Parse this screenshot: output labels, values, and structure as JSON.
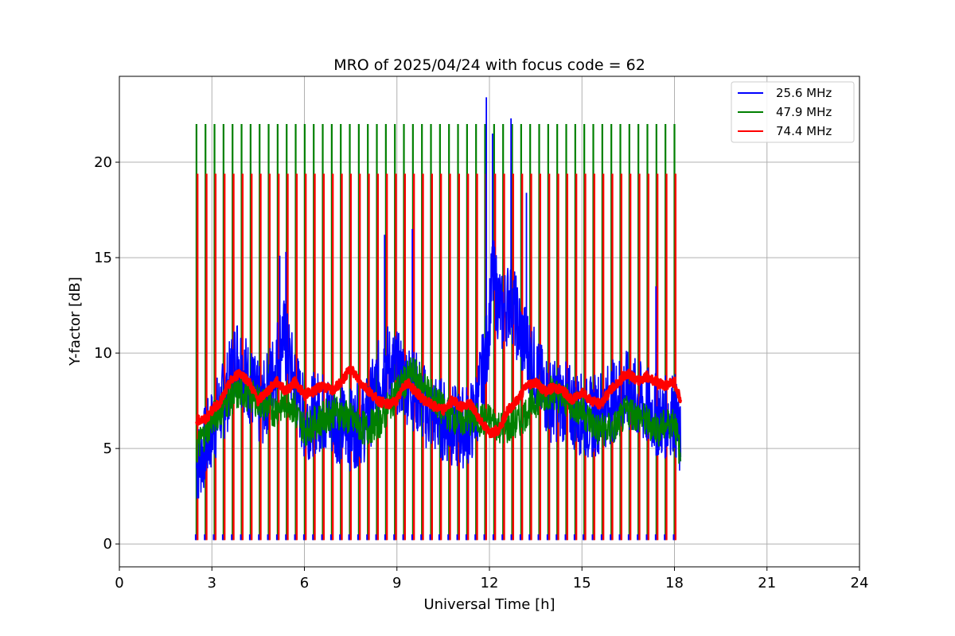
{
  "chart_data": {
    "type": "line",
    "title": "MRO of 2025/04/24 with focus code = 62",
    "xlabel": "Universal Time [h]",
    "ylabel": "Y-factor [dB]",
    "xlim": [
      0,
      24
    ],
    "ylim": [
      -1.2,
      24.5
    ],
    "xticks": [
      0,
      3,
      6,
      9,
      12,
      15,
      18,
      21,
      24
    ],
    "yticks": [
      0,
      5,
      10,
      15,
      20
    ],
    "grid": true,
    "legend_position": "top-right",
    "series": [
      {
        "name": "25.6 MHz",
        "color": "#0000ff",
        "x": [
          2.5,
          3.0,
          3.5,
          3.8,
          4.2,
          4.6,
          5.0,
          5.3,
          5.6,
          6.0,
          6.5,
          7.0,
          7.5,
          8.0,
          8.3,
          8.6,
          9.0,
          9.3,
          9.6,
          10.0,
          10.5,
          11.0,
          11.5,
          11.9,
          12.1,
          12.4,
          12.7,
          13.0,
          13.3,
          13.6,
          14.0,
          14.4,
          14.8,
          15.2,
          15.6,
          16.0,
          16.4,
          16.8,
          17.2,
          17.6,
          18.0,
          18.2
        ],
        "values": [
          4.0,
          6.0,
          8.0,
          10.0,
          8.5,
          7.0,
          9.0,
          11.0,
          9.0,
          6.5,
          7.0,
          6.5,
          6.0,
          6.5,
          8.0,
          9.5,
          9.0,
          8.5,
          8.0,
          7.0,
          6.5,
          6.0,
          6.5,
          10.0,
          14.0,
          12.0,
          13.0,
          11.0,
          10.0,
          8.5,
          7.5,
          7.5,
          7.0,
          6.5,
          7.0,
          7.5,
          8.0,
          7.5,
          7.0,
          6.5,
          7.0,
          5.0
        ],
        "peaks": [
          {
            "x": 5.2,
            "y": 15.1
          },
          {
            "x": 5.4,
            "y": 15.3
          },
          {
            "x": 8.6,
            "y": 16.2
          },
          {
            "x": 9.5,
            "y": 16.5
          },
          {
            "x": 11.9,
            "y": 23.4
          },
          {
            "x": 12.1,
            "y": 21.5
          },
          {
            "x": 12.7,
            "y": 22.3
          },
          {
            "x": 13.2,
            "y": 18.4
          },
          {
            "x": 17.4,
            "y": 13.5
          }
        ]
      },
      {
        "name": "47.9 MHz",
        "color": "#008000",
        "x": [
          2.5,
          3.0,
          3.5,
          4.0,
          4.5,
          5.0,
          5.5,
          6.0,
          6.5,
          7.0,
          7.5,
          8.0,
          8.5,
          9.0,
          9.5,
          10.0,
          10.5,
          11.0,
          11.5,
          12.0,
          12.5,
          13.0,
          13.5,
          14.0,
          14.5,
          15.0,
          15.5,
          16.0,
          16.5,
          17.0,
          17.5,
          18.0,
          18.2
        ],
        "values": [
          5.0,
          6.5,
          7.5,
          8.0,
          7.5,
          7.0,
          7.5,
          6.0,
          6.5,
          7.0,
          6.5,
          6.0,
          6.5,
          8.0,
          9.0,
          8.0,
          7.0,
          6.5,
          6.5,
          6.5,
          6.0,
          6.5,
          7.5,
          8.0,
          7.5,
          7.0,
          6.0,
          6.0,
          7.0,
          6.5,
          6.0,
          6.5,
          4.5
        ]
      },
      {
        "name": "74.4 MHz",
        "color": "#ff0000",
        "x": [
          2.5,
          2.8,
          3.0,
          3.3,
          3.6,
          3.9,
          4.2,
          4.5,
          4.8,
          5.1,
          5.4,
          5.7,
          6.0,
          6.3,
          6.6,
          6.9,
          7.2,
          7.5,
          7.8,
          8.1,
          8.4,
          8.7,
          9.0,
          9.3,
          9.6,
          9.9,
          10.2,
          10.5,
          10.8,
          11.1,
          11.4,
          11.7,
          12.0,
          12.3,
          12.6,
          12.9,
          13.2,
          13.5,
          13.8,
          14.1,
          14.4,
          14.7,
          15.0,
          15.3,
          15.6,
          15.9,
          16.2,
          16.5,
          16.8,
          17.1,
          17.4,
          17.7,
          18.0,
          18.2
        ],
        "values": [
          6.5,
          6.5,
          7.0,
          7.5,
          8.5,
          9.0,
          8.5,
          7.5,
          8.0,
          8.5,
          8.0,
          8.5,
          7.8,
          8.0,
          8.3,
          8.0,
          8.5,
          9.2,
          8.5,
          8.0,
          7.5,
          7.3,
          7.5,
          8.5,
          8.0,
          7.5,
          7.2,
          7.0,
          7.5,
          7.2,
          7.3,
          6.5,
          5.8,
          6.0,
          7.0,
          7.5,
          8.3,
          8.5,
          8.0,
          8.2,
          8.0,
          7.5,
          8.0,
          7.5,
          7.3,
          8.0,
          8.5,
          9.0,
          8.5,
          8.8,
          8.5,
          8.3,
          8.5,
          7.5
        ]
      }
    ],
    "calibration_pulses": {
      "x_start": 2.5,
      "x_end": 18.0,
      "count": 54,
      "levels": {
        "25.6 MHz": 0.2,
        "47.9 MHz": 22.0,
        "74.4 MHz": 19.4
      },
      "low": 0.2
    }
  }
}
